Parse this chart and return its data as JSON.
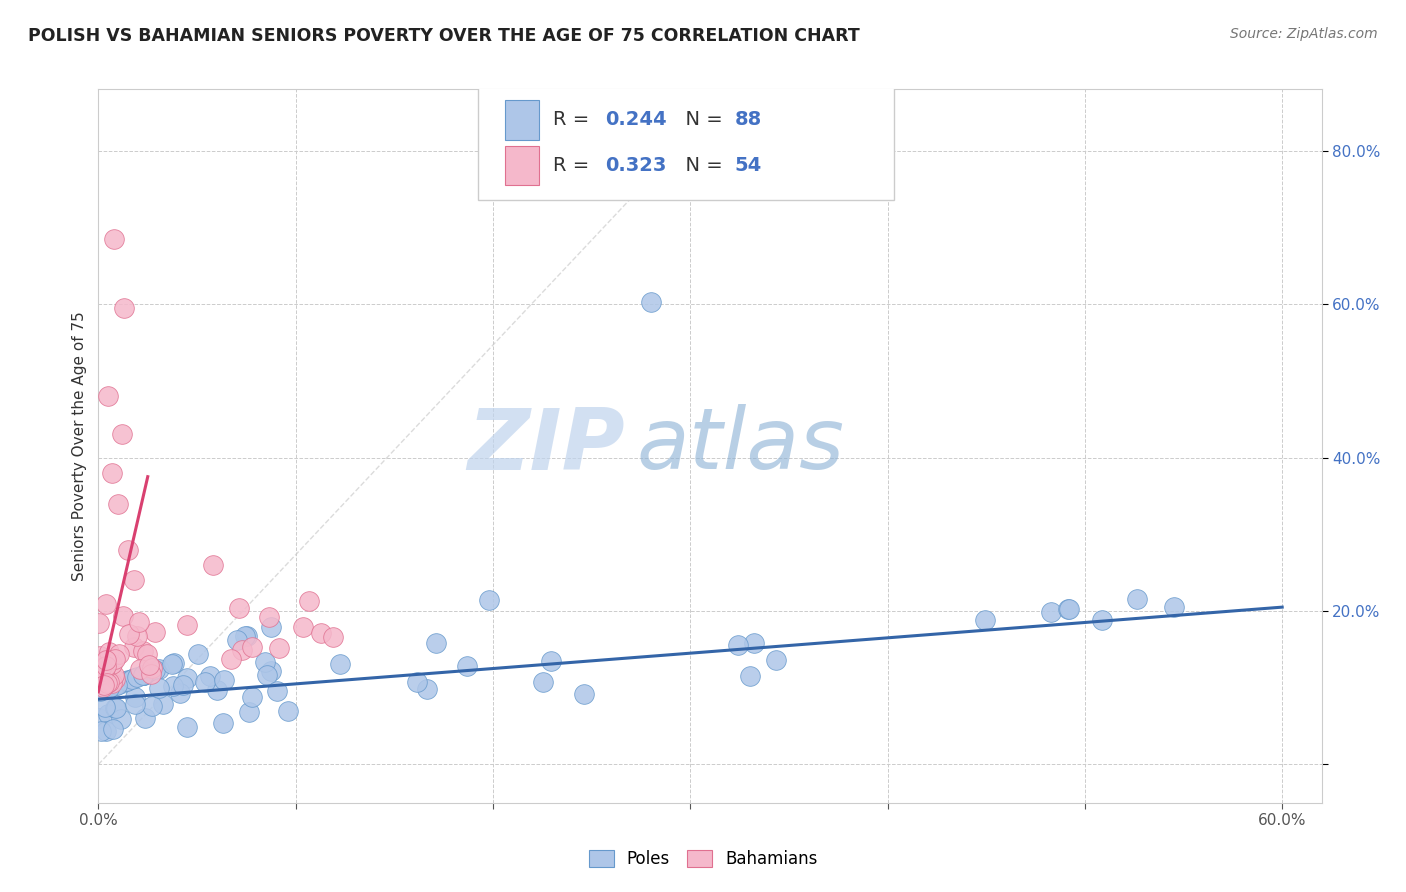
{
  "title": "POLISH VS BAHAMIAN SENIORS POVERTY OVER THE AGE OF 75 CORRELATION CHART",
  "source_text": "Source: ZipAtlas.com",
  "ylabel": "Seniors Poverty Over the Age of 75",
  "xlim": [
    0.0,
    0.62
  ],
  "ylim": [
    -0.05,
    0.88
  ],
  "poles_R": 0.244,
  "poles_N": 88,
  "bahamians_R": 0.323,
  "bahamians_N": 54,
  "poles_color": "#aec6e8",
  "bahamians_color": "#f5b8cb",
  "poles_edge_color": "#6699cc",
  "bahamians_edge_color": "#e07090",
  "poles_line_color": "#3465a8",
  "bahamians_line_color": "#d94070",
  "watermark_zip_color": "#c8daf0",
  "watermark_atlas_color": "#90b8d8",
  "legend_text_color": "#4472c4",
  "bg_color": "#ffffff"
}
